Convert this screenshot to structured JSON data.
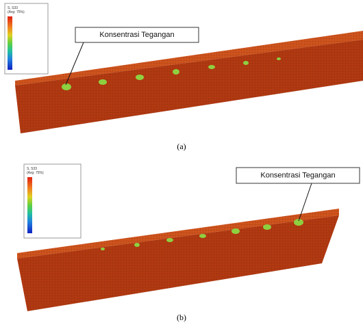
{
  "panels": [
    {
      "legend_title": "S, S33",
      "legend_subtitle": "(Avg: 75%)",
      "callout": "Konsentrasi Tegangan",
      "caption": "(a)"
    },
    {
      "legend_title": "S, S33",
      "legend_subtitle": "(Avg: 75%)",
      "callout": "Konsentrasi Tegangan",
      "caption": "(b)"
    }
  ]
}
